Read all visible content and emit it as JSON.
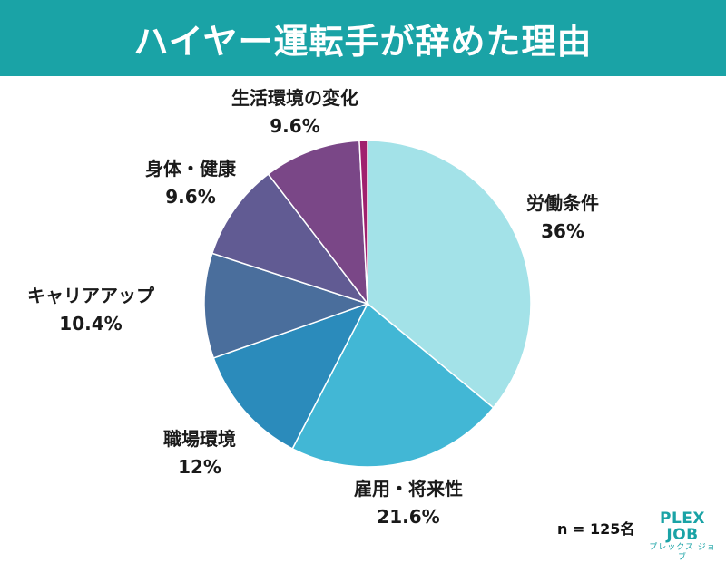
{
  "header": {
    "title": "ハイヤー運転手が辞めた理由"
  },
  "chart_data": {
    "type": "pie",
    "title": "ハイヤー運転手が辞めた理由",
    "slices": [
      {
        "label": "労働条件",
        "value": 36,
        "display": "36%",
        "color": "#a3e2e8"
      },
      {
        "label": "雇用・将来性",
        "value": 21.6,
        "display": "21.6%",
        "color": "#42b7d5"
      },
      {
        "label": "職場環境",
        "value": 12,
        "display": "12%",
        "color": "#2b8bbb"
      },
      {
        "label": "キャリアアップ",
        "value": 10.4,
        "display": "10.4%",
        "color": "#4a6e9c"
      },
      {
        "label": "身体・健康",
        "value": 9.6,
        "display": "9.6%",
        "color": "#615b93"
      },
      {
        "label": "生活環境の変化",
        "value": 9.6,
        "display": "9.6%",
        "color": "#7a4787"
      },
      {
        "label": "",
        "value": 0.8,
        "display": "",
        "color": "#a0206e"
      }
    ],
    "legend": "none"
  },
  "footer": {
    "sample": "n = 125名",
    "logo_main": "PLEX JOB",
    "logo_sub": "プレックス ジョブ"
  }
}
